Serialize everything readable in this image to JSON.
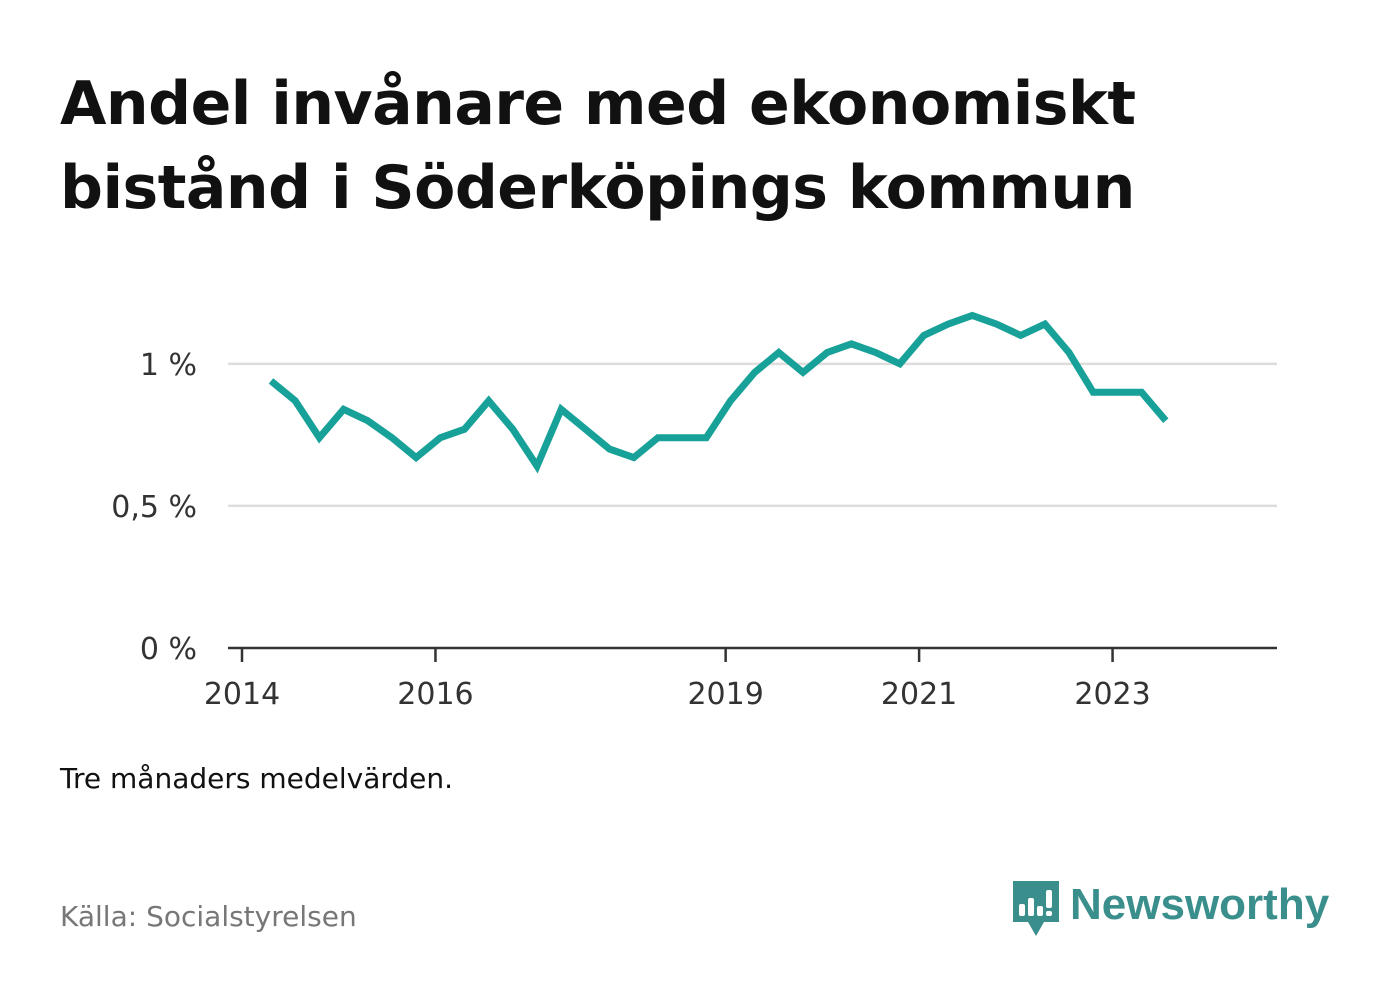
{
  "title": {
    "line1": "Andel invånare med ekonomiskt",
    "line2": "bistånd i Söderköpings kommun"
  },
  "note": "Tre månaders medelvärden.",
  "source": "Källa: Socialstyrelsen",
  "brand": {
    "name": "Newsworthy",
    "color": "#3a8f8c"
  },
  "colors": {
    "line": "#17a198",
    "grid": "#dddddd",
    "axis": "#333333",
    "tick_label": "#333333"
  },
  "chart_data": {
    "type": "line",
    "x_unit": "year",
    "xlim": [
      2014,
      2024.7
    ],
    "ylim": [
      0,
      1.2
    ],
    "y_ticks": [
      {
        "value": 0,
        "label": "0 %"
      },
      {
        "value": 0.5,
        "label": "0,5 %"
      },
      {
        "value": 1,
        "label": "1 %"
      }
    ],
    "x_ticks": [
      {
        "value": 2014,
        "label": "2014"
      },
      {
        "value": 2016,
        "label": "2016"
      },
      {
        "value": 2019,
        "label": "2019"
      },
      {
        "value": 2021,
        "label": "2021"
      },
      {
        "value": 2023,
        "label": "2023"
      }
    ],
    "grid": true,
    "series": [
      {
        "x": [
          2014.3,
          2014.55,
          2014.8,
          2015.05,
          2015.3,
          2015.55,
          2015.8,
          2016.05,
          2016.3,
          2016.55,
          2016.8,
          2017.05,
          2017.3,
          2017.55,
          2017.8,
          2018.05,
          2018.3,
          2018.55,
          2018.8,
          2019.05,
          2019.3,
          2019.55,
          2019.8,
          2020.05,
          2020.3,
          2020.55,
          2020.8,
          2021.05,
          2021.3,
          2021.55,
          2021.8,
          2022.05,
          2022.3,
          2022.55,
          2022.8,
          2023.05,
          2023.3,
          2023.55
        ],
        "y": [
          0.94,
          0.87,
          0.74,
          0.84,
          0.8,
          0.74,
          0.67,
          0.74,
          0.77,
          0.87,
          0.77,
          0.64,
          0.84,
          0.77,
          0.7,
          0.67,
          0.74,
          0.74,
          0.74,
          0.87,
          0.97,
          1.04,
          0.97,
          1.04,
          1.07,
          1.04,
          1.0,
          1.1,
          1.14,
          1.17,
          1.14,
          1.1,
          1.14,
          1.04,
          0.9,
          0.9,
          0.9,
          0.8
        ]
      }
    ]
  }
}
